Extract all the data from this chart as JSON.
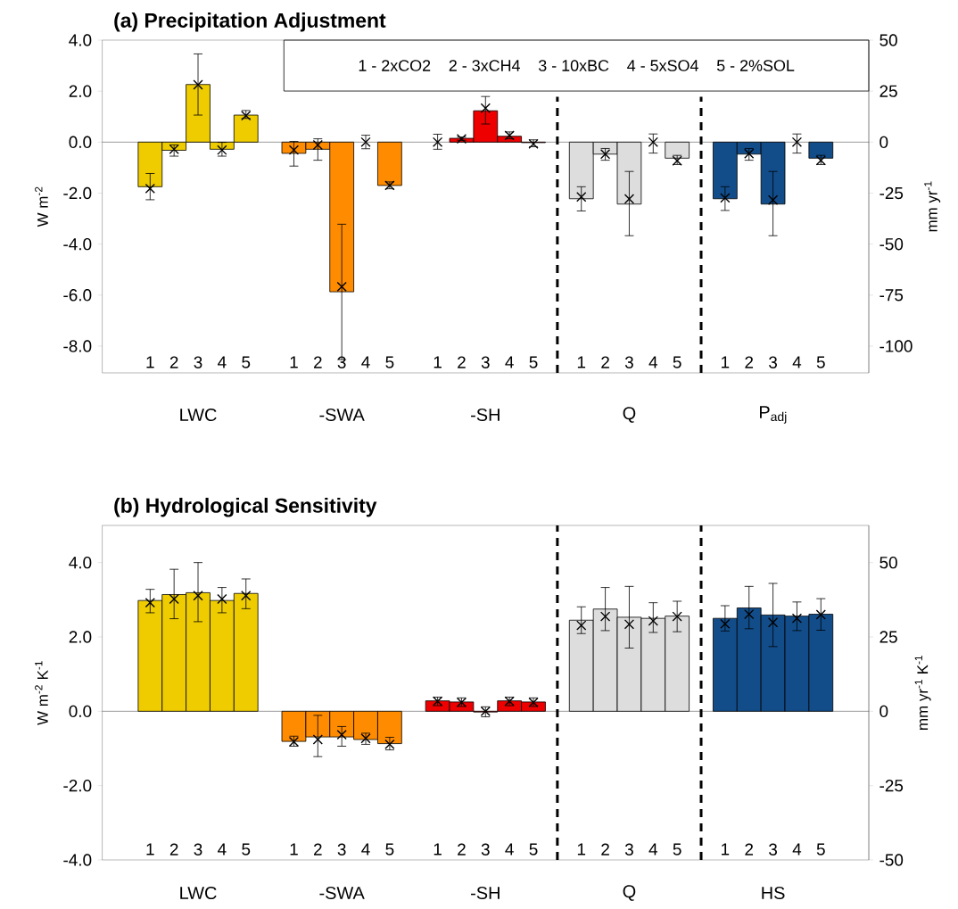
{
  "chart_data": [
    {
      "type": "bar",
      "title": "(a) Precipitation Adjustment",
      "ylabel": "W m$^{-2}$",
      "y2label": "mm yr$^{-1}$",
      "categories": [
        "1",
        "2",
        "3",
        "4",
        "5",
        null,
        "1",
        "2",
        "3",
        "4",
        "5",
        null,
        "1",
        "2",
        "3",
        "4",
        "5",
        null,
        "1",
        "2",
        "3",
        "4",
        "5",
        null,
        "1",
        "2",
        "3",
        "4",
        "5"
      ],
      "ylim": [
        -9.05,
        4
      ],
      "yticks": [
        {
          "value": -8,
          "label": "-8.0"
        },
        {
          "value": -6,
          "label": "-6.0"
        },
        {
          "value": -4,
          "label": "-4.0"
        },
        {
          "value": -2,
          "label": "-2.0"
        },
        {
          "value": 0,
          "label": "0.0"
        },
        {
          "value": 2,
          "label": "2.0"
        },
        {
          "value": 4,
          "label": "4.0"
        }
      ],
      "y2lim": [
        -113.1,
        50
      ],
      "y2ticks": [
        -100,
        -75,
        -50,
        -25,
        0,
        25,
        50
      ],
      "marker": "cross",
      "series": [
        {
          "type": "bar",
          "colors": [
            "#eecc00",
            "#eecc00",
            "#eecc00",
            "#eecc00",
            "#eecc00",
            null,
            "#ff8c00",
            "#ff8c00",
            "#ff8c00",
            "#ff8c00",
            "#ff8c00",
            null,
            "#ee0000",
            "#ee0000",
            "#ee0000",
            "#ee0000",
            "#ee0000",
            null,
            "#dddddd",
            "#dddddd",
            "#dddddd",
            "#dddddd",
            "#dddddd",
            null,
            "#124d8a",
            "#124d8a",
            "#124d8a",
            "#124d8a",
            "#124d8a"
          ],
          "values": [
            -1.75,
            -0.32,
            2.26,
            -0.28,
            1.06,
            null,
            -0.44,
            -0.28,
            -5.87,
            null,
            -1.7,
            null,
            null,
            0.15,
            1.23,
            0.23,
            -0.02,
            null,
            -2.22,
            -0.47,
            -2.43,
            null,
            -0.63,
            null,
            -2.22,
            -0.47,
            -2.43,
            null,
            -0.63
          ]
        },
        {
          "type": "scatter",
          "color": "#000000",
          "values": [
            -1.82,
            -0.28,
            2.25,
            -0.31,
            1.04,
            null,
            -0.31,
            -0.11,
            -5.67,
            0,
            -1.7,
            null,
            0,
            0.13,
            1.33,
            0.26,
            -0.07,
            null,
            -2.15,
            -0.47,
            -2.23,
            0,
            -0.73,
            null,
            -2.19,
            -0.45,
            -2.27,
            0,
            -0.72
          ],
          "errors": [
            [
              -2.26,
              -1.23
            ],
            [
              -0.55,
              -0.11
            ],
            [
              1.06,
              3.46
            ],
            [
              -0.55,
              -0.01
            ],
            [
              0.93,
              1.24
            ],
            null,
            [
              -0.94,
              0.03
            ],
            [
              -0.71,
              0.13
            ],
            [
              -8.53,
              -3.22
            ],
            [
              -0.26,
              0.27
            ],
            [
              -1.83,
              -1.56
            ],
            null,
            [
              -0.28,
              0.31
            ],
            [
              0.07,
              0.2
            ],
            [
              0.71,
              1.79
            ],
            [
              0.13,
              0.4
            ],
            [
              -0.18,
              0.09
            ],
            null,
            [
              -2.7,
              -1.75
            ],
            [
              -0.71,
              -0.25
            ],
            [
              -3.67,
              -1.15
            ],
            [
              -0.43,
              0.32
            ],
            [
              -0.88,
              -0.52
            ],
            null,
            [
              -2.68,
              -1.75
            ],
            [
              -0.71,
              -0.25
            ],
            [
              -3.67,
              -1.15
            ],
            [
              -0.43,
              0.32
            ],
            [
              -0.88,
              -0.52
            ]
          ]
        }
      ],
      "ref_lines": [
        {
          "axis": "y",
          "value": 0,
          "color": "#000000",
          "line_style": "solid"
        }
      ],
      "annotations": [
        "LWC",
        "-SWA",
        "-SH",
        "Q",
        "P$_{adj}$",
        "1 - 2xCO2",
        "2 - 3xCH4",
        "3 - 10xBC",
        "4 - 5xSO4",
        "5 - 2%SOL"
      ]
    },
    {
      "type": "bar",
      "title": "(b) Hydrological Sensitivity",
      "ylabel": "W m$^{-2}$ K$^{-1}$",
      "y2label": "mm yr$^{-1}$ K$^{-1}$",
      "categories": [
        "1",
        "2",
        "3",
        "4",
        "5",
        null,
        "1",
        "2",
        "3",
        "4",
        "5",
        null,
        "1",
        "2",
        "3",
        "4",
        "5",
        null,
        "1",
        "2",
        "3",
        "4",
        "5",
        null,
        "1",
        "2",
        "3",
        "4",
        "5"
      ],
      "ylim": [
        -4,
        5
      ],
      "yticks": [
        {
          "value": -4,
          "label": "-4.0"
        },
        {
          "value": -2,
          "label": "-2.0"
        },
        {
          "value": 0,
          "label": "0.0"
        },
        {
          "value": 2,
          "label": "2.0"
        },
        {
          "value": 4,
          "label": "4.0"
        }
      ],
      "y2lim": [
        -50,
        62.5
      ],
      "y2ticks": [
        -50,
        -25,
        0,
        25,
        50
      ],
      "marker": "cross",
      "series": [
        {
          "type": "bar",
          "colors": [
            "#eecc00",
            "#eecc00",
            "#eecc00",
            "#eecc00",
            "#eecc00",
            null,
            "#ff8c00",
            "#ff8c00",
            "#ff8c00",
            "#ff8c00",
            "#ff8c00",
            null,
            "#ee0000",
            "#ee0000",
            "#ee0000",
            "#ee0000",
            "#ee0000",
            null,
            "#dddddd",
            "#dddddd",
            "#dddddd",
            "#dddddd",
            "#dddddd",
            null,
            "#124d8a",
            "#124d8a",
            "#124d8a",
            "#124d8a",
            "#124d8a"
          ],
          "values": [
            2.98,
            3.14,
            3.19,
            2.98,
            3.17,
            null,
            -0.81,
            -0.69,
            -0.69,
            -0.76,
            -0.87,
            null,
            0.28,
            0.25,
            -0.02,
            0.28,
            0.25,
            null,
            2.45,
            2.75,
            2.53,
            2.5,
            2.56,
            null,
            2.5,
            2.78,
            2.59,
            2.56,
            2.61
          ]
        },
        {
          "type": "scatter",
          "color": "#000000",
          "values": [
            2.92,
            3.02,
            3.11,
            3.02,
            3.11,
            null,
            -0.82,
            -0.76,
            -0.63,
            -0.73,
            -0.89,
            null,
            0.27,
            0.24,
            0,
            0.27,
            0.24,
            null,
            2.31,
            2.55,
            2.34,
            2.43,
            2.55,
            null,
            2.35,
            2.61,
            2.39,
            2.5,
            2.6
          ],
          "errors": [
            [
              2.65,
              3.28
            ],
            [
              2.49,
              3.82
            ],
            [
              2.41,
              4.0
            ],
            [
              2.65,
              3.33
            ],
            [
              2.76,
              3.56
            ],
            null,
            [
              -0.94,
              -0.67
            ],
            [
              -1.22,
              -0.11
            ],
            [
              -0.94,
              -0.41
            ],
            [
              -0.89,
              -0.59
            ],
            [
              -1.04,
              -0.7
            ],
            null,
            [
              0.15,
              0.38
            ],
            [
              0.13,
              0.36
            ],
            [
              -0.15,
              0.12
            ],
            [
              0.15,
              0.38
            ],
            [
              0.13,
              0.36
            ],
            null,
            [
              2.09,
              2.81
            ],
            [
              2.17,
              3.33
            ],
            [
              1.7,
              3.36
            ],
            [
              2.12,
              2.92
            ],
            [
              2.14,
              2.96
            ],
            null,
            [
              2.16,
              2.84
            ],
            [
              2.22,
              3.36
            ],
            [
              1.74,
              3.44
            ],
            [
              2.17,
              2.94
            ],
            [
              2.18,
              3.03
            ]
          ]
        }
      ],
      "ref_lines": [
        {
          "axis": "y",
          "value": 0,
          "color": "#000000",
          "line_style": "solid"
        }
      ],
      "annotations": [
        "LWC",
        "-SWA",
        "-SH",
        "Q",
        "HS"
      ]
    }
  ]
}
